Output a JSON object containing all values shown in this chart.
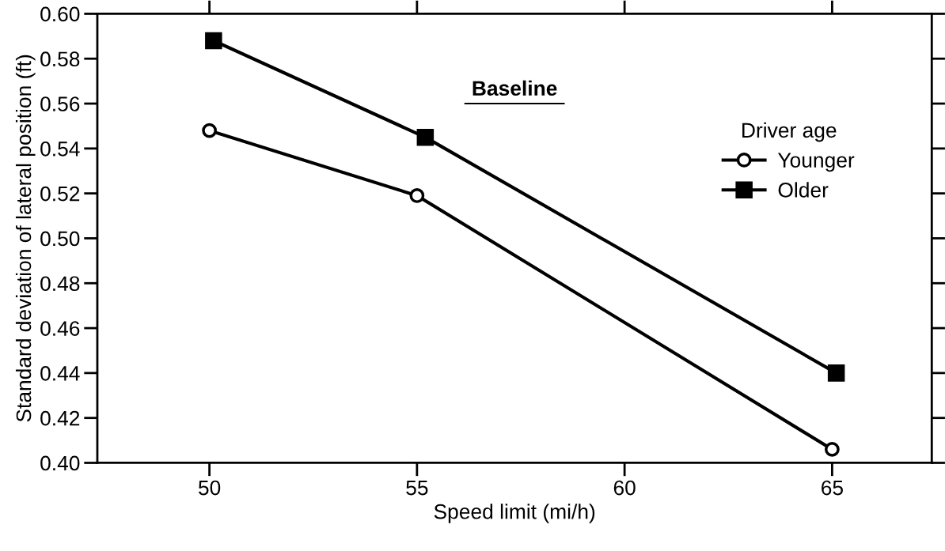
{
  "chart_data": {
    "type": "line",
    "xlabel": "Speed limit (mi/h)",
    "ylabel": "Standard deviation of lateral position (ft)",
    "legend_title": "Driver age",
    "legend": "top right",
    "grid": false,
    "annotations": [
      "Baseline"
    ],
    "xlim": [
      47.3,
      67.4
    ],
    "xticks": [
      50,
      55,
      60,
      65
    ],
    "ylim": [
      0.4,
      0.6
    ],
    "yticks": [
      {
        "value": 0.4,
        "label": "0.40"
      },
      {
        "value": 0.42,
        "label": "0.42"
      },
      {
        "value": 0.44,
        "label": "0.44"
      },
      {
        "value": 0.46,
        "label": "0.46"
      },
      {
        "value": 0.48,
        "label": "0.48"
      },
      {
        "value": 0.5,
        "label": "0.50"
      },
      {
        "value": 0.52,
        "label": "0.52"
      },
      {
        "value": 0.54,
        "label": "0.54"
      },
      {
        "value": 0.56,
        "label": "0.56"
      },
      {
        "value": 0.58,
        "label": "0.58"
      },
      {
        "value": 0.6,
        "label": "0.60"
      }
    ],
    "series": [
      {
        "name": "Younger",
        "color": "#000000",
        "marker": "circle",
        "x": [
          50,
          55,
          65
        ],
        "values": [
          0.548,
          0.519,
          0.406
        ]
      },
      {
        "name": "Older",
        "color": "#000000",
        "marker": "square",
        "x": [
          50.1,
          55.2,
          65.1
        ],
        "values": [
          0.588,
          0.545,
          0.44
        ]
      }
    ]
  }
}
